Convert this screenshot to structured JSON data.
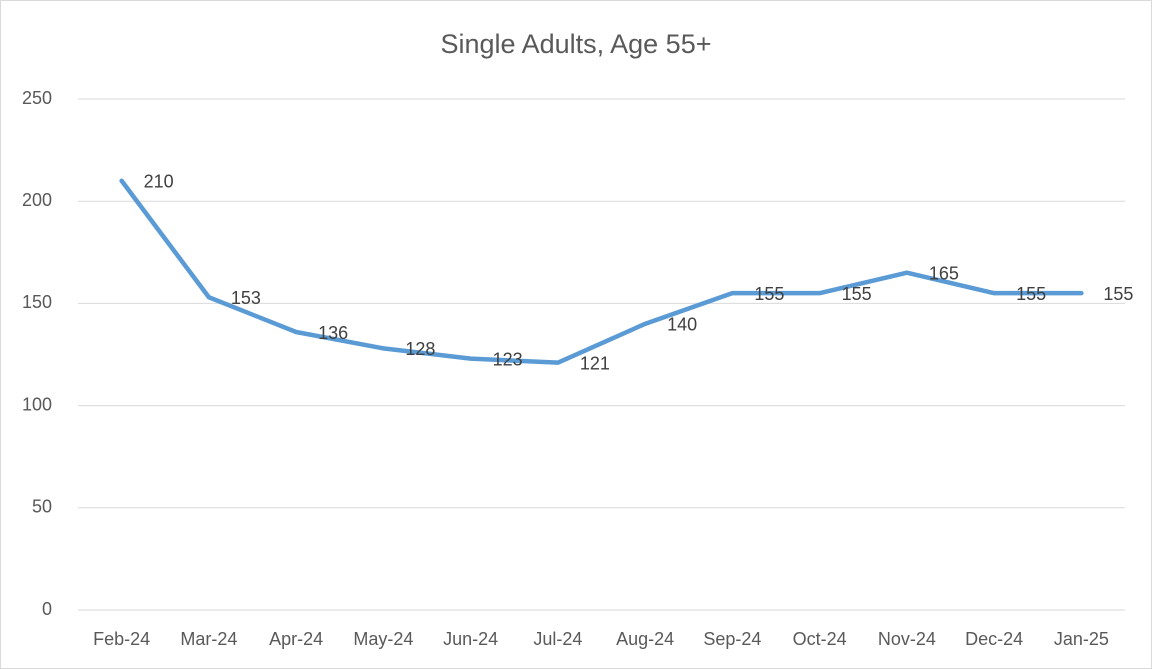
{
  "chart_data": {
    "type": "line",
    "title": "Single Adults, Age 55+",
    "categories": [
      "Feb-24",
      "Mar-24",
      "Apr-24",
      "May-24",
      "Jun-24",
      "Jul-24",
      "Aug-24",
      "Sep-24",
      "Oct-24",
      "Nov-24",
      "Dec-24",
      "Jan-25"
    ],
    "values": [
      210,
      153,
      136,
      128,
      123,
      121,
      140,
      155,
      155,
      165,
      155,
      155
    ],
    "color": "#5b9bd5",
    "ylim": [
      0,
      250
    ],
    "yticks": [
      0,
      50,
      100,
      150,
      200,
      250
    ],
    "grid": true
  }
}
